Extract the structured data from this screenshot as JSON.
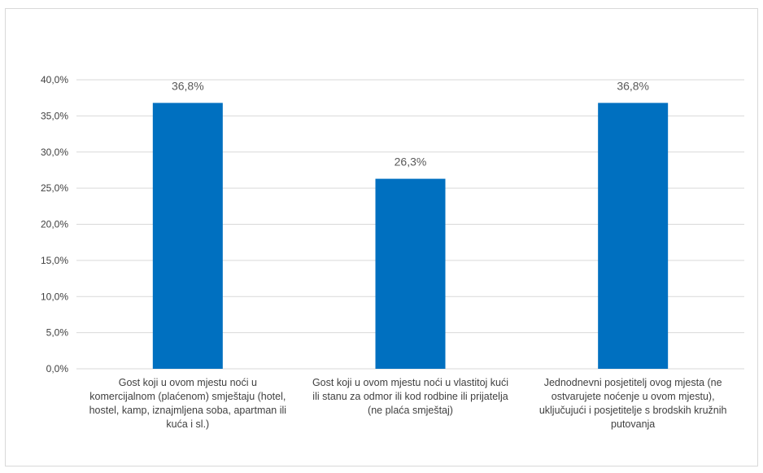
{
  "chart_data": {
    "type": "bar",
    "categories": [
      "Gost koji u ovom mjestu noći u komercijalnom (plaćenom) smještaju (hotel, hostel, kamp, iznajmljena soba, apartman ili kuća i sl.)",
      "Gost koji u ovom mjestu noći u vlastitoj kući ili stanu za odmor ili kod rodbine ili prijatelja (ne plaća smještaj)",
      "Jednodnevni posjetitelj ovog mjesta (ne ostvarujete noćenje u ovom mjestu), uključujući i posjetitelje s brodskih kružnih putovanja"
    ],
    "values": [
      36.8,
      26.3,
      36.8
    ],
    "data_labels": [
      "36,8%",
      "26,3%",
      "36,8%"
    ],
    "ylim": [
      0,
      40
    ],
    "yticks": [
      0,
      5,
      10,
      15,
      20,
      25,
      30,
      35,
      40
    ],
    "ytick_labels": [
      "0,0%",
      "5,0%",
      "10,0%",
      "15,0%",
      "20,0%",
      "25,0%",
      "30,0%",
      "35,0%",
      "40,0%"
    ],
    "grid": true,
    "bar_color": "#0070c0",
    "grid_color": "#d9d9d9"
  }
}
